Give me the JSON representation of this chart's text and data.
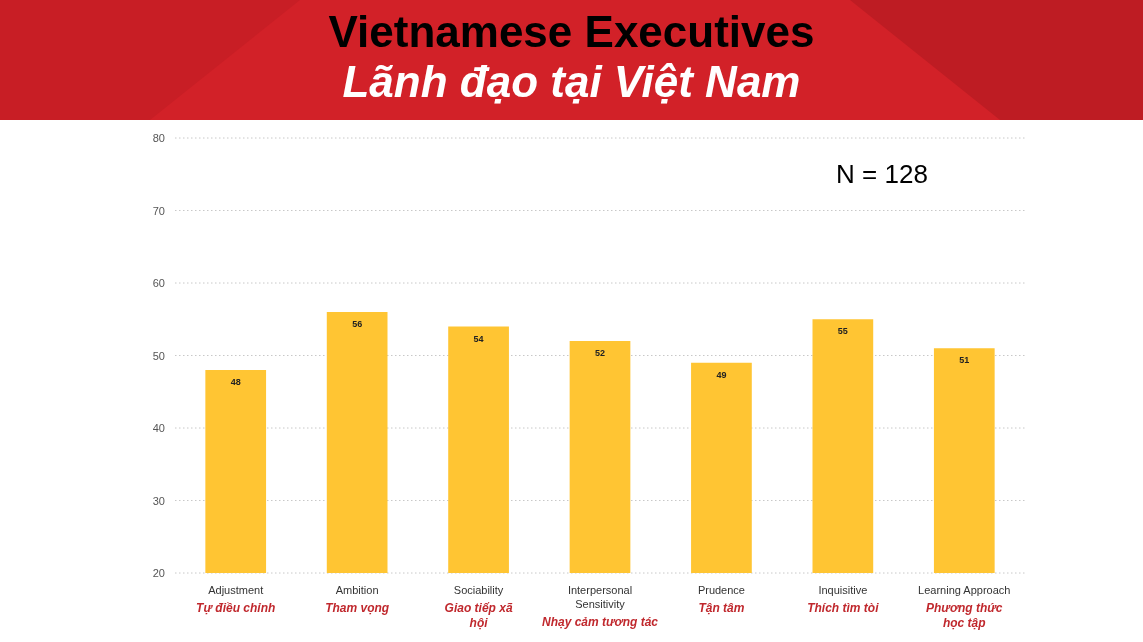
{
  "chart_data": {
    "type": "bar",
    "title": "Vietnamese Executives",
    "subtitle": "Lãnh đạo tại Việt Nam",
    "categories": [
      "Adjustment\nTự điều chỉnh",
      "Ambition\nTham vọng",
      "Sociability\nGiao tiếp xã hội",
      "Interpersonal Sensitivity\nNhạy cảm tương tác",
      "Prudence\nTận tâm",
      "Inquisitive\nThích tìm tòi",
      "Learning Approach\nPhương thức học tập"
    ],
    "values": [
      48,
      56,
      54,
      52,
      49,
      55,
      51
    ],
    "color": "#ffc533",
    "ylim": [
      20,
      80
    ],
    "yticks": [
      20,
      30,
      40,
      50,
      60,
      70,
      80
    ],
    "grid": "y",
    "data_labels": true,
    "annotations": [
      "N = 128"
    ]
  }
}
